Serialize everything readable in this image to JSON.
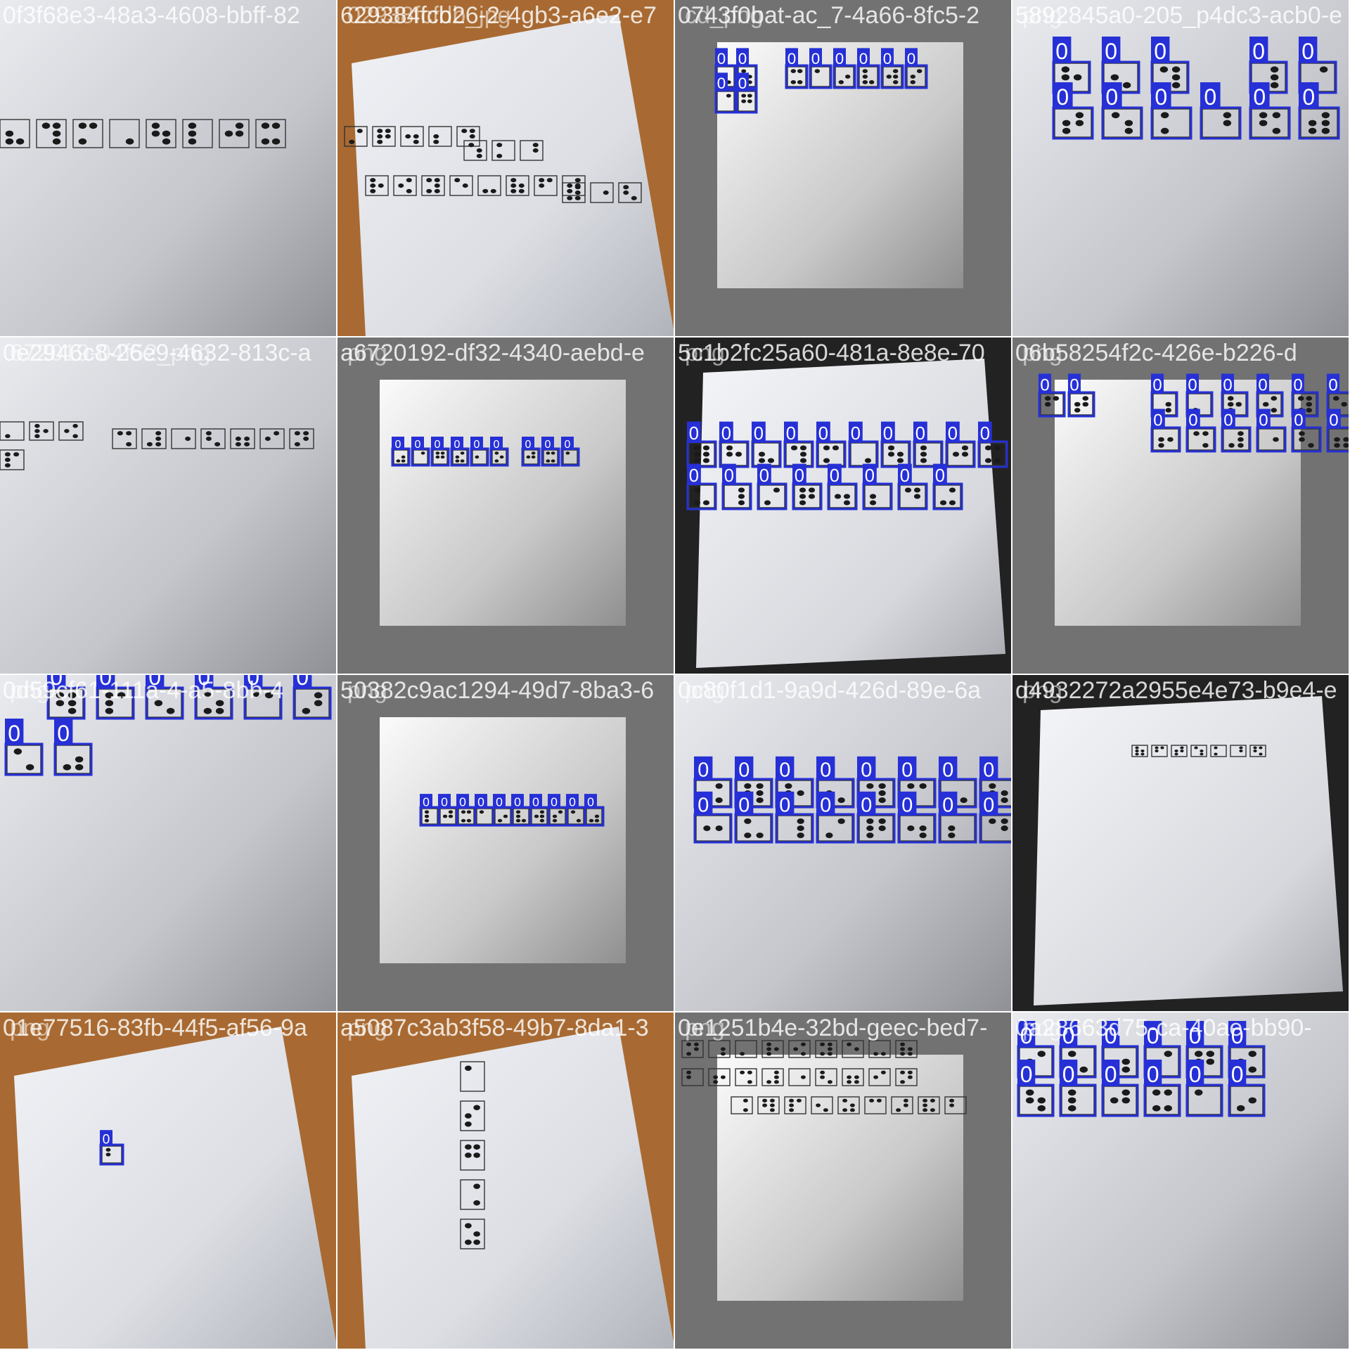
{
  "colors": {
    "box": "#2630d6",
    "label_bg": "#2630d6",
    "label_text": "#ffffff",
    "caption_text": "#ffffff",
    "paper": "#eef0f4",
    "paper_shadow": "#9a9ca3",
    "wood": "#a86a32",
    "pad_gray": "#727272",
    "braille_dot": "#1a1a1a"
  },
  "label_value": "0",
  "tiles": [
    {
      "captions": [
        "0f3f68e3-48a3-4608-bbff-82"
      ],
      "scene": "paper-gray"
    },
    {
      "captions": [
        "629384fcb26-2-4gb3-a6e2-e7",
        "02938fcfdb_jpg"
      ],
      "scene": "paper-wood"
    },
    {
      "captions": [
        "0743f0bat-ac_7-4a66-8fc5-2",
        "cd_png"
      ],
      "scene": "padded-paper"
    },
    {
      "captions": [
        "5892845a0-205_p4dc3-acb0-e",
        "png"
      ],
      "scene": "paper-gray"
    },
    {
      "captions": [
        "0e2946c8-26e9-4632-813c-a",
        "672019-04f52_png"
      ],
      "scene": "paper-gray"
    },
    {
      "captions": [
        "a6720192-df32-4340-aebd-e",
        "png"
      ],
      "scene": "padded-paper"
    },
    {
      "captions": [
        "5c1b2fc25a60-481a-8e8e-70",
        "png"
      ],
      "scene": "paper-dark"
    },
    {
      "captions": [
        "06b58254f2c-426e-b226-d",
        "png"
      ],
      "scene": "padded-paper"
    },
    {
      "captions": [
        "0d59cf61-111a-4-a5-8bb-4",
        "png"
      ],
      "scene": "paper-gray"
    },
    {
      "captions": [
        "50382c9ac1294-49d7-8ba3-6",
        "png"
      ],
      "scene": "padded-paper"
    },
    {
      "captions": [
        "0c80f1d1-9a9d-426d-89e-6a",
        "png"
      ],
      "scene": "paper-gray"
    },
    {
      "captions": [
        "d4932272a2955e4e73-b9e4-e",
        "png"
      ],
      "scene": "paper-dark"
    },
    {
      "captions": [
        "01e77516-83fb-44f5-af56-9a",
        "png"
      ],
      "scene": "paper-wood"
    },
    {
      "captions": [
        "a5087c3ab3f58-49b7-8da1-3",
        "png"
      ],
      "scene": "paper-wood"
    },
    {
      "captions": [
        "0e1251b4e-32bd-geec-bed7-",
        "png"
      ],
      "scene": "padded-paper"
    },
    {
      "captions": [
        "0a28663d75-ca-40ae-bb90-",
        "png"
      ],
      "scene": "paper-gray"
    }
  ]
}
